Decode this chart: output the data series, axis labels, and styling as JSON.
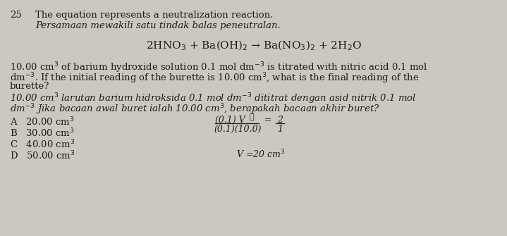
{
  "background_color": "#ccc8c0",
  "question_number": "25",
  "line1_en": "The equation represents a neutralization reaction.",
  "line1_it": "Persamaan mewakili satu tindak balas peneutralan.",
  "equation": "2HNO$_3$ + Ba(OH)$_2$ → Ba(NO$_3$)$_2$ + 2H$_2$O",
  "body_en_1": "10.00 cm$^3$ of barium hydroxide solution 0.1 mol dm$^{-3}$ is titrated with nitric acid 0.1 mol",
  "body_en_2": "dm$^{-3}$. If the initial reading of the burette is 10.00 cm$^3$, what is the final reading of the",
  "body_en_3": "burette?",
  "body_it_1": "10.00 cm$^3$ larutan barium hidroksida 0.1 mol dm$^{-3}$ dititrat dengan asid nitrik 0.1 mol",
  "body_it_2": "dm$^{-3}$ Jika bacaan awal buret ialah 10.00 cm$^3$, berapakah bacaan akhir buret?",
  "opt_A": "A   20.00 cm$^3$",
  "opt_B": "B   30.00 cm$^3$",
  "opt_C": "C   40.00 cm$^3$",
  "opt_D": "D   50.00 cm$^3$",
  "hw_num": "(0.1) V",
  "hw_den": "(0.1)(10.0)",
  "hw_eq2_num": "2",
  "hw_eq2_den": "1",
  "hw_v": "V =20 cm$^3$",
  "text_color": "#1c1c1c",
  "fs_body": 9.5,
  "fs_eq": 11.0,
  "fs_hw": 9.0
}
